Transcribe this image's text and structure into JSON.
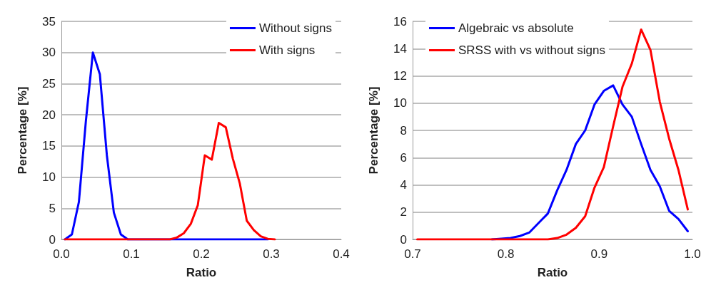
{
  "chart_data": [
    {
      "type": "line",
      "xlabel": "Ratio",
      "ylabel": "Percentage [%]",
      "xlim": [
        0,
        0.4
      ],
      "xticks": [
        {
          "value": 0,
          "label": "0.0"
        },
        0.1,
        0.2,
        0.3,
        {
          "value": 0.4,
          "label": "0.4"
        }
      ],
      "ylim": [
        0,
        35
      ],
      "yticks": [
        0,
        5,
        10,
        15,
        20,
        25,
        30,
        35
      ],
      "grid": "y",
      "legend": "top right",
      "marker": "none",
      "line_style": "solid",
      "series": [
        {
          "name": "Without signs",
          "color": "#0000ff",
          "x": [
            0.005,
            0.015,
            0.025,
            0.035,
            0.045,
            0.055,
            0.065,
            0.075,
            0.085,
            0.095,
            0.105,
            0.115,
            0.125,
            0.135,
            0.145,
            0.155,
            0.165,
            0.175,
            0.185,
            0.195,
            0.205,
            0.215,
            0.225,
            0.235,
            0.245,
            0.255,
            0.265,
            0.275,
            0.285,
            0.295
          ],
          "values": [
            0,
            0.8,
            6,
            19,
            30,
            26.5,
            13.5,
            4.3,
            0.8,
            0,
            0,
            0,
            0,
            0,
            0,
            0,
            0,
            0,
            0,
            0,
            0,
            0,
            0,
            0,
            0,
            0,
            0,
            0,
            0,
            0
          ]
        },
        {
          "name": "With signs",
          "color": "#ff0000",
          "x": [
            0.005,
            0.015,
            0.025,
            0.035,
            0.045,
            0.055,
            0.065,
            0.075,
            0.085,
            0.095,
            0.105,
            0.115,
            0.125,
            0.135,
            0.145,
            0.155,
            0.165,
            0.175,
            0.185,
            0.195,
            0.205,
            0.215,
            0.225,
            0.235,
            0.245,
            0.255,
            0.265,
            0.275,
            0.285,
            0.295,
            0.305
          ],
          "values": [
            0,
            0,
            0,
            0,
            0,
            0,
            0,
            0,
            0,
            0,
            0,
            0,
            0,
            0,
            0,
            0,
            0.3,
            1,
            2.5,
            5.5,
            13.5,
            12.8,
            18.7,
            18,
            13,
            9,
            3,
            1.5,
            0.5,
            0.1,
            0
          ]
        }
      ]
    },
    {
      "type": "line",
      "xlabel": "Ratio",
      "ylabel": "Percentage [%]",
      "xlim": [
        0.7,
        1
      ],
      "xticks": [
        0.7,
        0.8,
        0.9,
        {
          "value": 1,
          "label": "1.0"
        }
      ],
      "ylim": [
        0,
        16
      ],
      "yticks": [
        0,
        2,
        4,
        6,
        8,
        10,
        12,
        14,
        16
      ],
      "grid": "y",
      "legend": "top left",
      "marker": "none",
      "line_style": "solid",
      "series": [
        {
          "name": "Algebraic vs absolute",
          "color": "#0000ff",
          "x": [
            0.785,
            0.795,
            0.805,
            0.815,
            0.825,
            0.835,
            0.845,
            0.855,
            0.865,
            0.875,
            0.885,
            0.895,
            0.905,
            0.915,
            0.925,
            0.935,
            0.945,
            0.955,
            0.965,
            0.975,
            0.985,
            0.995
          ],
          "values": [
            0,
            0.05,
            0.1,
            0.25,
            0.5,
            1.2,
            1.9,
            3.6,
            5.1,
            7,
            8,
            9.9,
            10.9,
            11.3,
            9.9,
            9,
            7,
            5.1,
            3.9,
            2.1,
            1.5,
            0.6
          ]
        },
        {
          "name": "SRSS with vs without signs",
          "color": "#ff0000",
          "x": [
            0.705,
            0.715,
            0.725,
            0.735,
            0.745,
            0.755,
            0.765,
            0.775,
            0.785,
            0.795,
            0.805,
            0.815,
            0.825,
            0.835,
            0.845,
            0.855,
            0.865,
            0.875,
            0.885,
            0.895,
            0.905,
            0.915,
            0.925,
            0.935,
            0.945,
            0.955,
            0.965,
            0.975,
            0.985,
            0.995
          ],
          "values": [
            0,
            0,
            0,
            0,
            0,
            0,
            0,
            0,
            0,
            0,
            0,
            0,
            0,
            0,
            0,
            0.1,
            0.35,
            0.85,
            1.7,
            3.8,
            5.3,
            8.3,
            11.2,
            12.9,
            15.4,
            13.9,
            10.1,
            7.4,
            5.1,
            2.2
          ]
        }
      ]
    }
  ]
}
